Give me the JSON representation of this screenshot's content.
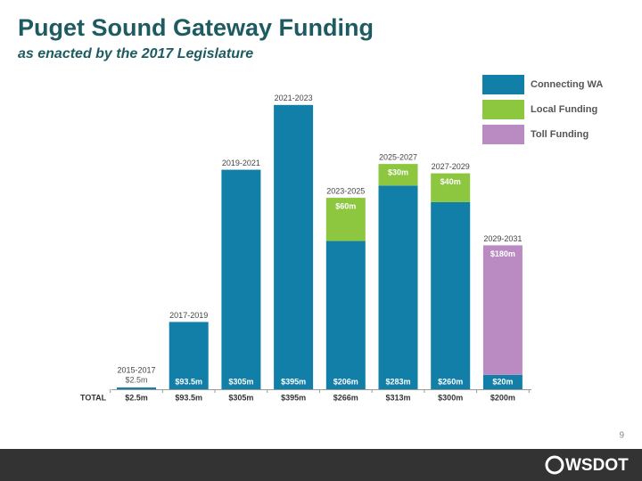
{
  "chart_data": {
    "type": "bar",
    "stacked": true,
    "title": "Puget Sound Gateway Funding",
    "subtitle": "as enacted by the 2017 Legislature",
    "categories": [
      "2015-2017",
      "2017-2019",
      "2019-2021",
      "2021-2023",
      "2023-2025",
      "2025-2027",
      "2027-2029",
      "2029-2031"
    ],
    "series": [
      {
        "name": "Connecting WA",
        "color": "#127fa8",
        "values": [
          2.5,
          93.5,
          305,
          395,
          206,
          283,
          260,
          20
        ],
        "value_labels": [
          "$2.5m",
          "$93.5m",
          "$305m",
          "$395m",
          "$206m",
          "$283m",
          "$260m",
          "$20m"
        ]
      },
      {
        "name": "Local Funding",
        "color": "#8dc63f",
        "values": [
          null,
          null,
          null,
          null,
          60,
          30,
          40,
          null
        ],
        "value_labels": [
          null,
          null,
          null,
          null,
          "$60m",
          "$30m",
          "$40m",
          null
        ]
      },
      {
        "name": "Toll Funding",
        "color": "#b98bc2",
        "values": [
          null,
          null,
          null,
          null,
          null,
          null,
          null,
          180
        ],
        "value_labels": [
          null,
          null,
          null,
          null,
          null,
          null,
          null,
          "$180m"
        ]
      }
    ],
    "totals": {
      "label": "TOTAL",
      "values": [
        2.5,
        93.5,
        305,
        395,
        266,
        313,
        300,
        200
      ],
      "value_labels": [
        "$2.5m",
        "$93.5m",
        "$305m",
        "$395m",
        "$266m",
        "$313m",
        "$300m",
        "$200m"
      ]
    }
  },
  "page_number": "9",
  "footer": {
    "logo": "WSDOT"
  }
}
